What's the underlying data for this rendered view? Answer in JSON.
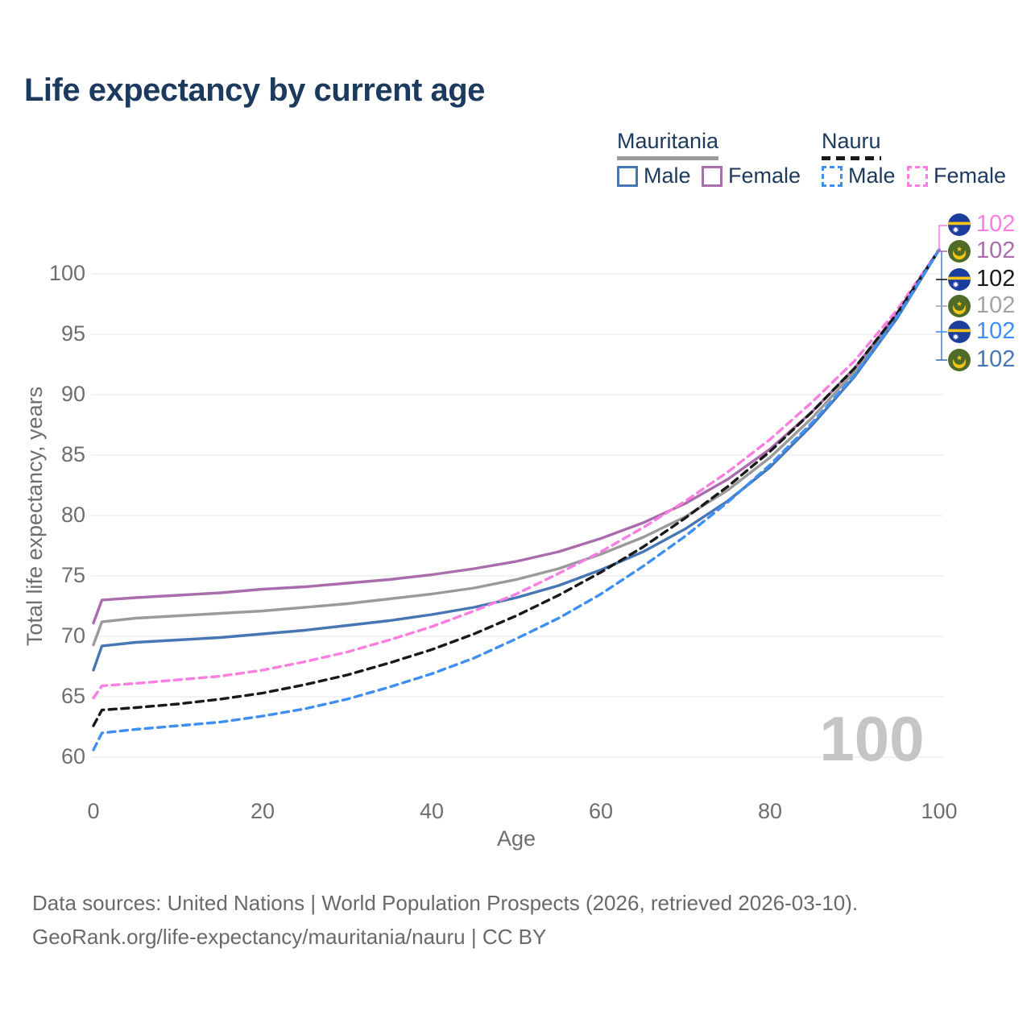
{
  "title": "Life expectancy by current age",
  "legend": {
    "groups": [
      {
        "country": "Mauritania",
        "line_style": "solid",
        "underline_color": "#9a9a9a",
        "items": [
          {
            "label": "Male",
            "color": "#4677b4"
          },
          {
            "label": "Female",
            "color": "#aa6cac"
          }
        ]
      },
      {
        "country": "Nauru",
        "line_style": "dashed",
        "underline_color": "#191919",
        "items": [
          {
            "label": "Male",
            "color": "#3f8ff2"
          },
          {
            "label": "Female",
            "color": "#fb7ee0"
          }
        ]
      }
    ]
  },
  "watermark": "100",
  "footer": {
    "line1": "Data sources: United Nations | World Population Prospects (2026, retrieved 2026-03-10).",
    "line2": "GeoRank.org/life-expectancy/mauritania/nauru | CC BY"
  },
  "chart_data": {
    "type": "line",
    "title": "Life expectancy by current age",
    "xlabel": "Age",
    "ylabel": "Total life expectancy, years",
    "xlim": [
      0,
      100
    ],
    "ylim": [
      60,
      103
    ],
    "xticks": [
      0,
      20,
      40,
      60,
      80,
      100
    ],
    "yticks": [
      60,
      65,
      70,
      75,
      80,
      85,
      90,
      95,
      100
    ],
    "grid": "horizontal",
    "legend_position": "top-right",
    "x": [
      0,
      1,
      5,
      10,
      15,
      20,
      25,
      30,
      35,
      40,
      45,
      50,
      55,
      60,
      65,
      70,
      75,
      80,
      85,
      90,
      95,
      100
    ],
    "series": [
      {
        "name": "Mauritania Both sexes",
        "country": "Mauritania",
        "sex": "Both",
        "color": "#9a9a9a",
        "dash": false,
        "values": [
          69.3,
          71.2,
          71.5,
          71.7,
          71.9,
          72.1,
          72.4,
          72.7,
          73.1,
          73.5,
          74.0,
          74.7,
          75.6,
          76.8,
          78.2,
          79.9,
          82.1,
          84.8,
          88.1,
          91.9,
          96.5,
          102
        ]
      },
      {
        "name": "Mauritania Female",
        "country": "Mauritania",
        "sex": "Female",
        "color": "#aa6cac",
        "dash": false,
        "values": [
          71.1,
          73.0,
          73.2,
          73.4,
          73.6,
          73.9,
          74.1,
          74.4,
          74.7,
          75.1,
          75.6,
          76.2,
          77.0,
          78.1,
          79.4,
          81.0,
          83.0,
          85.5,
          88.6,
          92.2,
          96.7,
          102
        ]
      },
      {
        "name": "Mauritania Male",
        "country": "Mauritania",
        "sex": "Male",
        "color": "#4677b4",
        "dash": false,
        "values": [
          67.2,
          69.2,
          69.5,
          69.7,
          69.9,
          70.2,
          70.5,
          70.9,
          71.3,
          71.8,
          72.4,
          73.2,
          74.2,
          75.5,
          77.0,
          78.9,
          81.2,
          84.0,
          87.5,
          91.5,
          96.3,
          102
        ]
      },
      {
        "name": "Nauru Female",
        "country": "Nauru",
        "sex": "Female",
        "color": "#fb7ee0",
        "dash": true,
        "values": [
          64.9,
          65.9,
          66.1,
          66.4,
          66.7,
          67.2,
          67.9,
          68.7,
          69.7,
          70.8,
          72.1,
          73.5,
          75.2,
          77.0,
          79.0,
          81.2,
          83.6,
          86.3,
          89.4,
          92.8,
          97.0,
          102
        ]
      },
      {
        "name": "Nauru Both sexes",
        "country": "Nauru",
        "sex": "Both",
        "color": "#191919",
        "dash": true,
        "values": [
          62.6,
          63.9,
          64.1,
          64.4,
          64.8,
          65.3,
          66.0,
          66.8,
          67.8,
          68.9,
          70.2,
          71.7,
          73.4,
          75.3,
          77.4,
          79.8,
          82.4,
          85.3,
          88.6,
          92.2,
          96.7,
          102
        ]
      },
      {
        "name": "Nauru Male",
        "country": "Nauru",
        "sex": "Male",
        "color": "#3f8ff2",
        "dash": true,
        "values": [
          60.6,
          62.0,
          62.3,
          62.6,
          62.9,
          63.4,
          64.0,
          64.8,
          65.8,
          66.9,
          68.2,
          69.8,
          71.5,
          73.5,
          75.8,
          78.3,
          81.1,
          84.2,
          87.7,
          91.6,
          96.4,
          102
        ]
      }
    ],
    "end_labels": [
      {
        "text": "102",
        "series": "Nauru Female",
        "flag": "nauru",
        "color": "#fb7ee0"
      },
      {
        "text": "102",
        "series": "Mauritania Female",
        "flag": "mauritania",
        "color": "#aa6cac"
      },
      {
        "text": "102",
        "series": "Nauru Both sexes",
        "flag": "nauru",
        "color": "#191919"
      },
      {
        "text": "102",
        "series": "Mauritania Both sexes",
        "flag": "mauritania",
        "color": "#a3a3a3"
      },
      {
        "text": "102",
        "series": "Nauru Male",
        "flag": "nauru",
        "color": "#3f8ff2"
      },
      {
        "text": "102",
        "series": "Mauritania Male",
        "flag": "mauritania",
        "color": "#4677b4"
      }
    ]
  }
}
